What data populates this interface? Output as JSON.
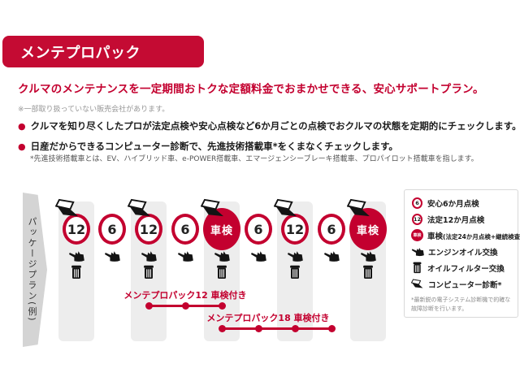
{
  "colors": {
    "accent": "#c3002f",
    "banner": "#c40b33",
    "strip": "#ededed",
    "ribbon": "#d4d4d4"
  },
  "header": {
    "title": "メンテプロパック"
  },
  "intro": {
    "headline": "クルマのメンテナンスを一定期間おトクな定額料金でおまかせできる、安心サポートプラン。",
    "note": "※一部取り扱っていない販売会社があります。",
    "bullet_mark": "●",
    "bullets": [
      {
        "text": "クルマを知り尽くしたプロが法定点検や安心点検など6か月ごとの点検でおクルマの状態を定期的にチェックします。"
      },
      {
        "text": "日産だからできるコンピューター診断で、先進技術搭載車*をくまなくチェックします。",
        "footnote": "*先進技術搭載車とは、EV、ハイブリッド車、e-POWER搭載車、エマージェンシーブレーキ搭載車、プロパイロット搭載車を指します。"
      }
    ]
  },
  "diagram": {
    "side_label": "パッケージプラン(例)",
    "columns": [
      {
        "label": "12",
        "type": "inspection12",
        "strip": true,
        "icons": [
          "computer-diagnosis",
          "engine-oil",
          "oil-filter"
        ]
      },
      {
        "label": "6",
        "type": "inspection6",
        "strip": false,
        "icons": [
          "engine-oil"
        ]
      },
      {
        "label": "12",
        "type": "inspection12",
        "strip": true,
        "icons": [
          "computer-diagnosis",
          "engine-oil",
          "oil-filter"
        ]
      },
      {
        "label": "6",
        "type": "inspection6",
        "strip": false,
        "icons": [
          "engine-oil"
        ]
      },
      {
        "label": "車検",
        "type": "shaken",
        "strip": true,
        "icons": [
          "computer-diagnosis",
          "engine-oil",
          "oil-filter"
        ]
      },
      {
        "label": "6",
        "type": "inspection6",
        "strip": false,
        "icons": [
          "engine-oil"
        ]
      },
      {
        "label": "12",
        "type": "inspection12",
        "strip": true,
        "icons": [
          "computer-diagnosis",
          "engine-oil",
          "oil-filter"
        ]
      },
      {
        "label": "6",
        "type": "inspection6",
        "strip": false,
        "icons": [
          "engine-oil"
        ]
      },
      {
        "label": "車検",
        "type": "shaken",
        "strip": true,
        "icons": [
          "computer-diagnosis",
          "engine-oil",
          "oil-filter"
        ]
      }
    ],
    "packages": [
      {
        "label": "メンテプロパック12 車検付き",
        "dots": 3,
        "span_columns": [
          2,
          4
        ]
      },
      {
        "label": "メンテプロパック18 車検付き",
        "dots": 4,
        "span_columns": [
          4,
          7
        ]
      }
    ]
  },
  "legend": {
    "items": [
      {
        "icon": "inspection-6-icon",
        "badge": "6",
        "label": "安心6か月点検"
      },
      {
        "icon": "inspection-12-icon",
        "badge": "12",
        "label": "法定12か月点検"
      },
      {
        "icon": "shaken-icon",
        "badge": "車検",
        "label": "車検",
        "sublabel": "(法定24か月点検+継続検査)"
      },
      {
        "icon": "engine-oil-icon",
        "label": "エンジンオイル交換"
      },
      {
        "icon": "oil-filter-icon",
        "label": "オイルフィルター交換"
      },
      {
        "icon": "computer-diagnosis-icon",
        "label": "コンピューター診断*"
      }
    ],
    "note": "*最新鋭の電子システム診断機で的確な故障診断を行います。"
  }
}
